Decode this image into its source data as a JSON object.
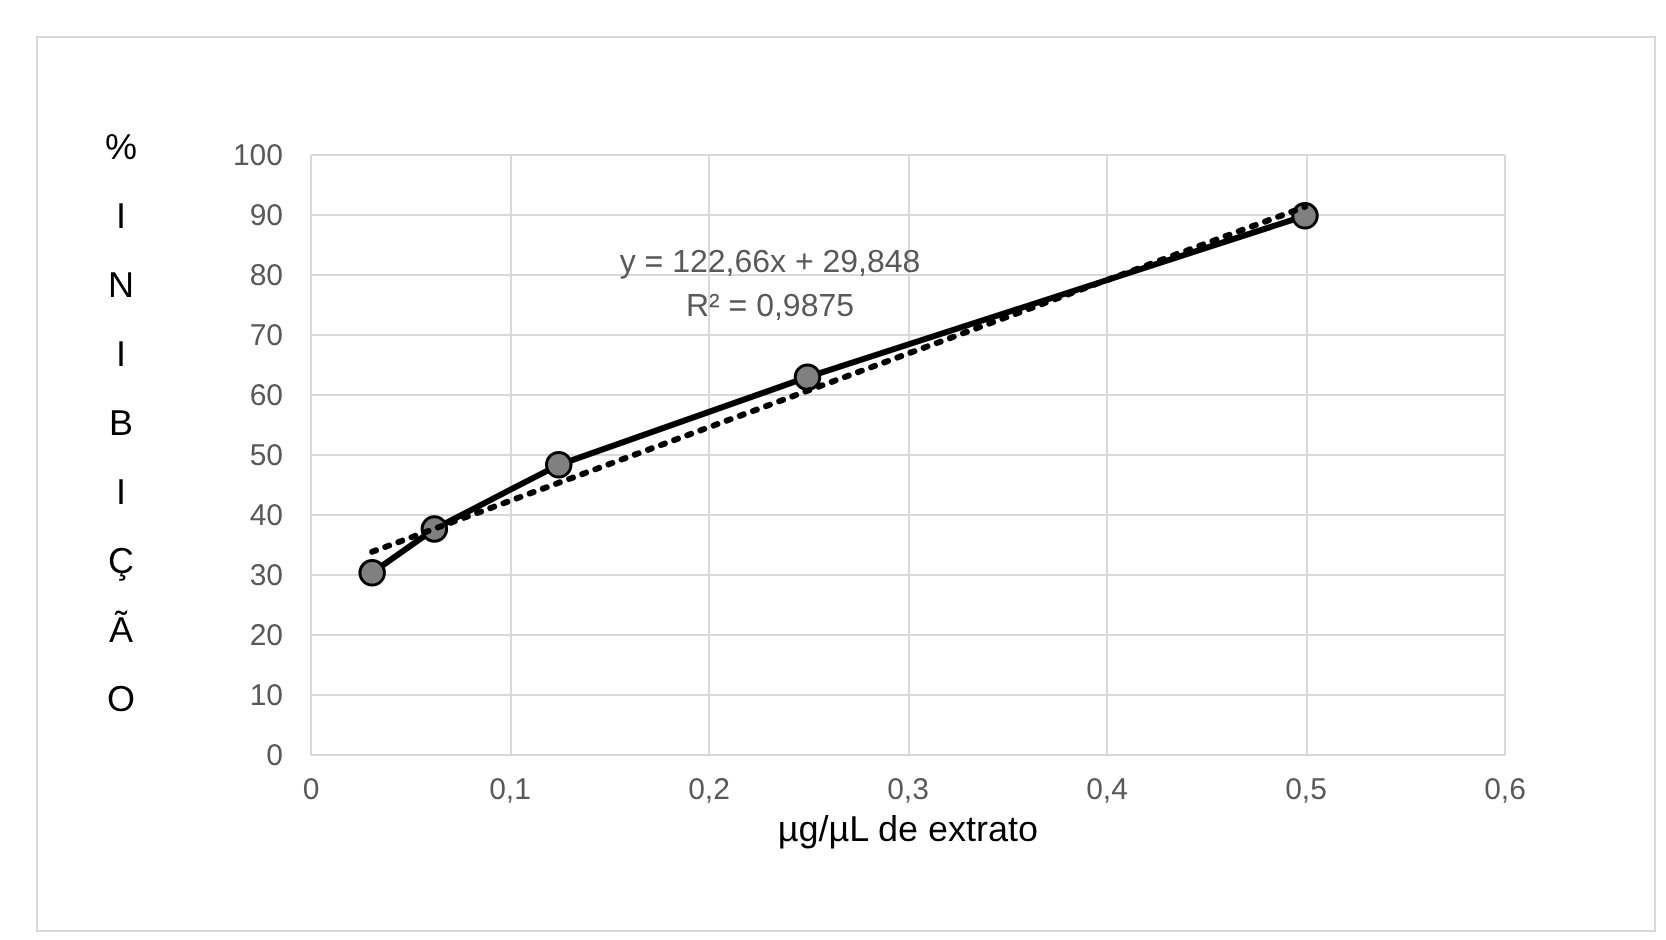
{
  "chart_data": {
    "type": "line",
    "xlabel": "µg/µL de extrato",
    "ylabel": "% INIBIÇÃO",
    "series": [
      {
        "type": "line",
        "color": "#000000",
        "marker": "circle",
        "line_style": "solid",
        "x": [
          0.03125,
          0.0625,
          0.125,
          0.25,
          0.5
        ],
        "values": [
          30.2,
          37.5,
          48.2,
          62.8,
          89.7
        ]
      },
      {
        "type": "line",
        "color": "#000000",
        "marker": "none",
        "line_style": "dotted",
        "x": [
          0.03125,
          0.5
        ],
        "values": [
          33.7,
          91.2
        ]
      }
    ],
    "annotations": [
      "y = 122,66x + 29,848",
      "R² = 0,9875"
    ],
    "xlim": [
      0,
      0.6
    ],
    "xticks": [
      0,
      {
        "value": 0.1,
        "label": "0,1"
      },
      {
        "value": 0.2,
        "label": "0,2"
      },
      {
        "value": 0.3,
        "label": "0,3"
      },
      {
        "value": 0.4,
        "label": "0,4"
      },
      {
        "value": 0.5,
        "label": "0,5"
      },
      {
        "value": 0.6,
        "label": "0,6"
      }
    ],
    "ylim": [
      0,
      100
    ],
    "yticks": [
      0,
      10,
      20,
      30,
      40,
      50,
      60,
      70,
      80,
      90,
      100
    ],
    "grid": true,
    "legend": false
  }
}
